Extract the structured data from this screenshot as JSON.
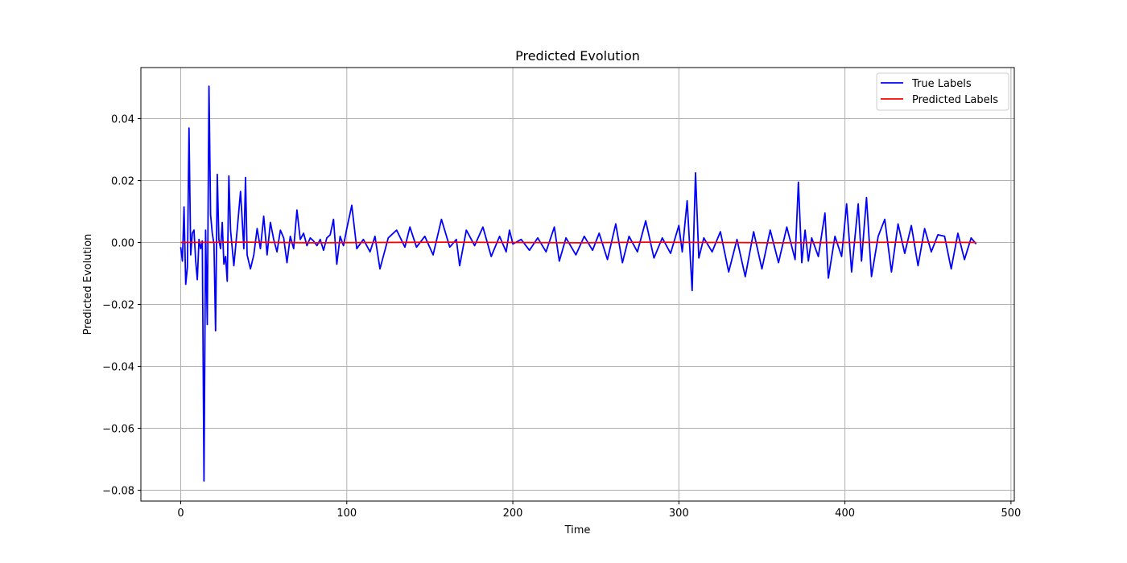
{
  "chart_data": {
    "type": "line",
    "title": "Predicted Evolution",
    "xlabel": "Time",
    "ylabel": "Predicted Evolution",
    "xlim": [
      -24,
      502
    ],
    "ylim": [
      -0.0835,
      0.0565
    ],
    "xticks": [
      0,
      100,
      200,
      300,
      400,
      500
    ],
    "xtick_labels": [
      "0",
      "100",
      "200",
      "300",
      "400",
      "500"
    ],
    "yticks": [
      -0.08,
      -0.06,
      -0.04,
      -0.02,
      0.0,
      0.02,
      0.04
    ],
    "ytick_labels": [
      "−0.08",
      "−0.06",
      "−0.04",
      "−0.02",
      "0.00",
      "0.02",
      "0.04"
    ],
    "grid": true,
    "legend_position": "top-right",
    "series": [
      {
        "name": "True Labels",
        "color": "#0000ff",
        "x": [
          0,
          1,
          2,
          3,
          4,
          5,
          6,
          7,
          8,
          9,
          10,
          11,
          12,
          13,
          14,
          15,
          16,
          17,
          18,
          19,
          20,
          21,
          22,
          23,
          24,
          25,
          26,
          27,
          28,
          29,
          30,
          32,
          34,
          36,
          38,
          39,
          40,
          42,
          44,
          46,
          48,
          50,
          52,
          54,
          56,
          58,
          60,
          62,
          64,
          66,
          68,
          70,
          72,
          74,
          76,
          78,
          80,
          82,
          84,
          86,
          88,
          90,
          92,
          94,
          96,
          98,
          100,
          103,
          106,
          110,
          114,
          117,
          120,
          125,
          130,
          135,
          138,
          142,
          147,
          152,
          157,
          162,
          166,
          168,
          172,
          177,
          182,
          187,
          192,
          196,
          198,
          200,
          205,
          210,
          215,
          220,
          225,
          228,
          232,
          238,
          243,
          248,
          252,
          257,
          262,
          266,
          270,
          275,
          280,
          285,
          290,
          295,
          300,
          302,
          305,
          308,
          310,
          312,
          315,
          320,
          325,
          330,
          335,
          340,
          345,
          350,
          355,
          360,
          365,
          370,
          372,
          374,
          376,
          378,
          380,
          384,
          388,
          390,
          394,
          398,
          401,
          404,
          408,
          410,
          413,
          416,
          420,
          424,
          428,
          432,
          436,
          440,
          444,
          448,
          452,
          456,
          460,
          464,
          468,
          472,
          476,
          479
        ],
        "y": [
          -0.0015,
          -0.006,
          0.0115,
          -0.0135,
          -0.008,
          0.037,
          -0.004,
          0.003,
          0.004,
          -0.006,
          -0.012,
          0.001,
          -0.002,
          0.0005,
          -0.077,
          0.004,
          -0.0265,
          0.0505,
          0.009,
          0.003,
          -0.0005,
          -0.0285,
          0.022,
          0.001,
          -0.002,
          0.0065,
          -0.007,
          -0.0045,
          -0.0125,
          0.0215,
          0.004,
          -0.0075,
          0.004,
          0.0165,
          -0.002,
          0.021,
          -0.004,
          -0.0085,
          -0.004,
          0.0045,
          -0.002,
          0.0085,
          -0.004,
          0.0065,
          0.001,
          -0.003,
          0.004,
          0.0015,
          -0.0065,
          0.002,
          -0.002,
          0.0105,
          0.001,
          0.003,
          -0.001,
          0.0015,
          0.0005,
          -0.001,
          0.001,
          -0.0025,
          0.0015,
          0.0025,
          0.0075,
          -0.007,
          0.002,
          -0.001,
          0.0045,
          0.012,
          -0.002,
          0.001,
          -0.003,
          0.002,
          -0.0085,
          0.0015,
          0.004,
          -0.0015,
          0.005,
          -0.0015,
          0.002,
          -0.004,
          0.0075,
          -0.0015,
          0.001,
          -0.0075,
          0.004,
          -0.001,
          0.005,
          -0.0045,
          0.002,
          -0.003,
          0.004,
          -0.0005,
          0.001,
          -0.0025,
          0.0015,
          -0.003,
          0.005,
          -0.006,
          0.0015,
          -0.004,
          0.002,
          -0.0025,
          0.003,
          -0.0055,
          0.006,
          -0.0065,
          0.002,
          -0.003,
          0.007,
          -0.005,
          0.0015,
          -0.0035,
          0.0055,
          -0.003,
          0.0135,
          -0.0155,
          0.0225,
          -0.005,
          0.0015,
          -0.003,
          0.0035,
          -0.0095,
          0.001,
          -0.011,
          0.0035,
          -0.0085,
          0.004,
          -0.0065,
          0.005,
          -0.0055,
          0.0195,
          -0.0065,
          0.004,
          -0.006,
          0.0015,
          -0.0045,
          0.0095,
          -0.0115,
          0.002,
          -0.0045,
          0.0125,
          -0.0095,
          0.0125,
          -0.006,
          0.0145,
          -0.011,
          0.002,
          0.0075,
          -0.0095,
          0.006,
          -0.0035,
          0.0055,
          -0.0075,
          0.0045,
          -0.003,
          0.0025,
          0.002,
          -0.0085,
          0.003,
          -0.0055,
          0.0015,
          -0.0005
        ]
      },
      {
        "name": "Predicted Labels",
        "color": "#ff0000",
        "x": [
          0,
          40,
          80,
          120,
          160,
          200,
          240,
          280,
          320,
          360,
          400,
          440,
          479
        ],
        "y": [
          0.0,
          0.0001,
          -0.0001,
          0.0,
          0.0001,
          0.0,
          -0.0001,
          0.0001,
          0.0,
          -0.0001,
          0.0,
          0.0001,
          0.0
        ]
      }
    ]
  }
}
